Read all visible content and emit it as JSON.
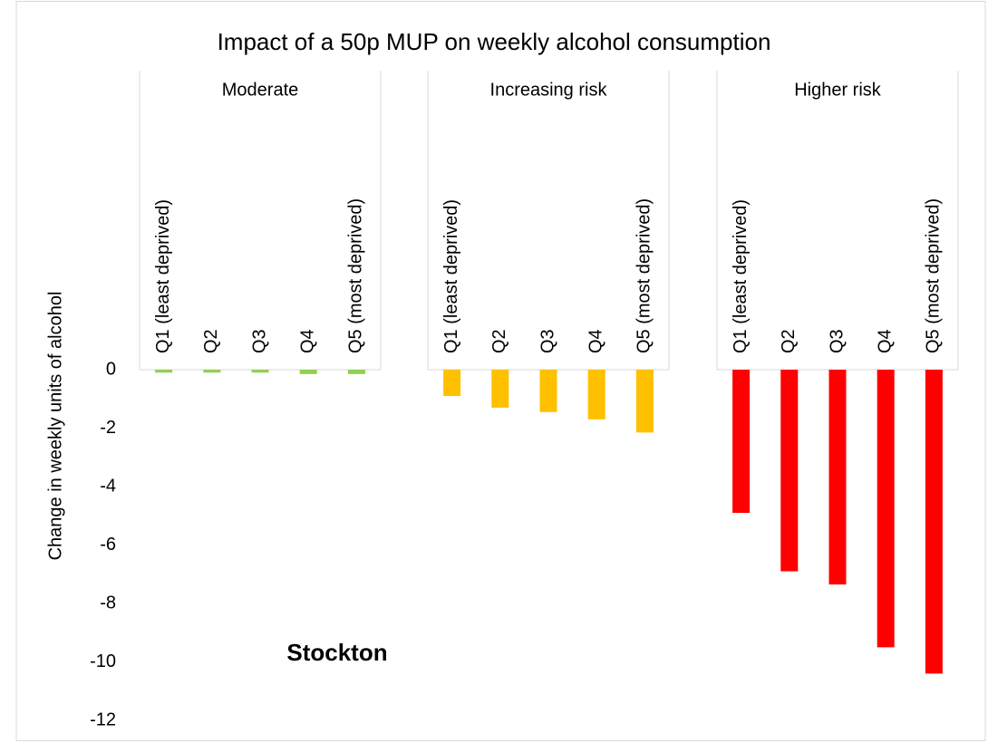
{
  "chart_data": {
    "type": "bar",
    "title": "Impact of a 50p MUP on weekly alcohol consumption",
    "y_label": "Change in weekly units of alcohol",
    "annotation": "Stockton",
    "categories": [
      "Q1 (least deprived)",
      "Q2",
      "Q3",
      "Q4",
      "Q5 (most deprived)"
    ],
    "series": [
      {
        "name": "Moderate",
        "color": "#92d050",
        "values": [
          -0.1,
          -0.1,
          -0.1,
          -0.15,
          -0.15
        ]
      },
      {
        "name": "Increasing risk",
        "color": "#ffc000",
        "values": [
          -0.9,
          -1.3,
          -1.45,
          -1.7,
          -2.15
        ]
      },
      {
        "name": "Higher risk",
        "color": "#ff0000",
        "values": [
          -4.9,
          -6.9,
          -7.35,
          -9.5,
          -10.4
        ]
      }
    ],
    "ylim": [
      -12,
      0
    ],
    "yticks": [
      0,
      -2,
      -4,
      -6,
      -8,
      -10,
      -12
    ],
    "grid": false
  }
}
